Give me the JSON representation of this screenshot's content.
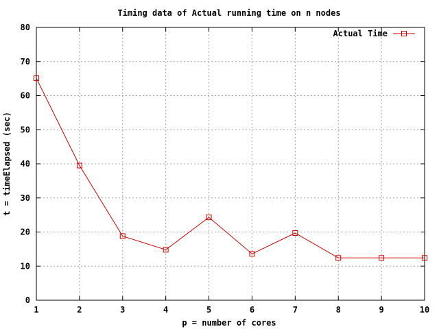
{
  "chart_data": {
    "type": "line",
    "title": "Timing data of Actual running time on n nodes",
    "xlabel": "p = number of cores",
    "ylabel": "t = timeElapsed (sec)",
    "xlim": [
      1,
      10
    ],
    "ylim": [
      0,
      80
    ],
    "xticks": [
      1,
      2,
      3,
      4,
      5,
      6,
      7,
      8,
      9,
      10
    ],
    "yticks": [
      0,
      10,
      20,
      30,
      40,
      50,
      60,
      70,
      80
    ],
    "grid": true,
    "legend_position": "top-right",
    "series": [
      {
        "name": "Actual Time",
        "color": "#cc0000",
        "marker": "square",
        "x": [
          1,
          2,
          3,
          4,
          5,
          6,
          7,
          8,
          9,
          10
        ],
        "y": [
          65.1,
          39.5,
          18.8,
          14.8,
          24.3,
          13.6,
          19.7,
          12.4,
          12.4,
          12.4
        ]
      }
    ]
  }
}
